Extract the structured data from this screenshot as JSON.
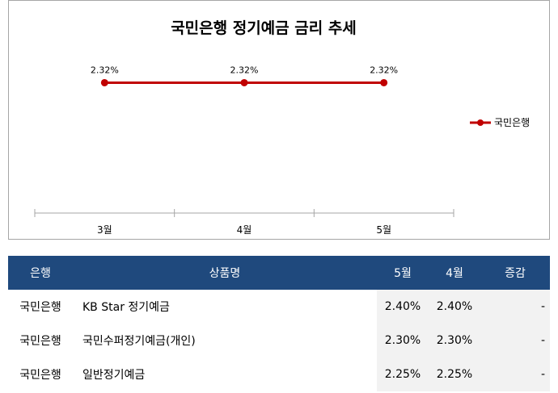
{
  "chart_data": {
    "type": "line",
    "title": "국민은행 정기예금 금리 추세",
    "categories": [
      "3월",
      "4월",
      "5월"
    ],
    "series": [
      {
        "name": "국민은행",
        "values": [
          2.32,
          2.32,
          2.32
        ],
        "labels": [
          "2.32%",
          "2.32%",
          "2.32%"
        ],
        "color": "#c00000"
      }
    ],
    "ylim": [
      0,
      2.7
    ],
    "grid": false,
    "legend": "right"
  },
  "table": {
    "headers": [
      "은행",
      "상품명",
      "5월",
      "4월",
      "증감"
    ],
    "rows": [
      [
        "국민은행",
        "KB Star 정기예금",
        "2.40%",
        "2.40%",
        "-"
      ],
      [
        "국민은행",
        "국민수퍼정기예금(개인)",
        "2.30%",
        "2.30%",
        "-"
      ],
      [
        "국민은행",
        "일반정기예금",
        "2.25%",
        "2.25%",
        "-"
      ]
    ],
    "header_color": "#1f497d"
  }
}
